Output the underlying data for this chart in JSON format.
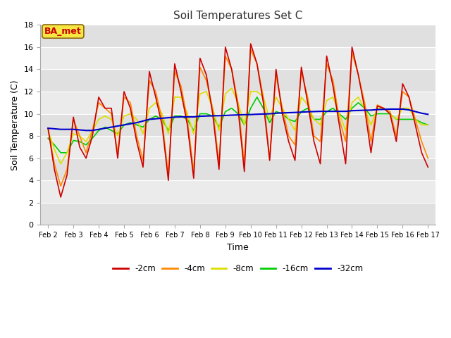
{
  "title": "Soil Temperatures Set C",
  "xlabel": "Time",
  "ylabel": "Soil Temperature (C)",
  "ylim": [
    0,
    18
  ],
  "yticks": [
    0,
    2,
    4,
    6,
    8,
    10,
    12,
    14,
    16,
    18
  ],
  "xtick_labels": [
    "Feb 2",
    "Feb 3",
    "Feb 4",
    "Feb 5",
    "Feb 6",
    "Feb 7",
    "Feb 8",
    "Feb 9",
    "Feb 10",
    "Feb 11",
    "Feb 12",
    "Feb 13",
    "Feb 14",
    "Feb 15",
    "Feb 16",
    "Feb 17"
  ],
  "annotation": "BA_met",
  "bg_color": "#ffffff",
  "plot_bg": "#e8e8e8",
  "band_colors": [
    "#e0e0e0",
    "#ebebeb"
  ],
  "series": {
    "neg2cm": {
      "color": "#cc0000",
      "label": "-2cm",
      "linewidth": 1.2
    },
    "neg4cm": {
      "color": "#ff8800",
      "label": "-4cm",
      "linewidth": 1.2
    },
    "neg8cm": {
      "color": "#dddd00",
      "label": "-8cm",
      "linewidth": 1.2
    },
    "neg16cm": {
      "color": "#00cc00",
      "label": "-16cm",
      "linewidth": 1.2
    },
    "neg32cm": {
      "color": "#0000cc",
      "label": "-32cm",
      "linewidth": 1.5
    }
  },
  "t": [
    0.0,
    0.25,
    0.5,
    0.75,
    1.0,
    1.25,
    1.5,
    1.75,
    2.0,
    2.25,
    2.5,
    2.75,
    3.0,
    3.25,
    3.5,
    3.75,
    4.0,
    4.25,
    4.5,
    4.75,
    5.0,
    5.25,
    5.5,
    5.75,
    6.0,
    6.25,
    6.5,
    6.75,
    7.0,
    7.25,
    7.5,
    7.75,
    8.0,
    8.25,
    8.5,
    8.75,
    9.0,
    9.25,
    9.5,
    9.75,
    10.0,
    10.25,
    10.5,
    10.75,
    11.0,
    11.25,
    11.5,
    11.75,
    12.0,
    12.25,
    12.5,
    12.75,
    13.0,
    13.25,
    13.5,
    13.75,
    14.0,
    14.25,
    14.5,
    14.75,
    15.0
  ],
  "neg2cm_data": [
    8.7,
    5.0,
    2.5,
    4.5,
    9.7,
    7.0,
    6.0,
    8.0,
    11.5,
    10.5,
    10.5,
    6.0,
    12.0,
    10.5,
    7.5,
    5.2,
    13.8,
    11.5,
    9.0,
    4.0,
    14.5,
    12.0,
    9.0,
    4.2,
    15.0,
    13.5,
    10.0,
    5.0,
    16.0,
    14.0,
    10.5,
    4.8,
    16.3,
    14.5,
    11.0,
    5.8,
    14.0,
    10.0,
    7.5,
    5.8,
    14.2,
    11.0,
    7.5,
    5.5,
    15.2,
    12.5,
    9.0,
    5.5,
    16.0,
    13.5,
    10.5,
    6.5,
    10.7,
    10.5,
    10.0,
    7.5,
    12.7,
    11.5,
    9.0,
    6.5,
    5.2
  ],
  "neg4cm_data": [
    8.7,
    5.5,
    3.5,
    5.0,
    9.5,
    8.0,
    6.5,
    8.5,
    11.0,
    10.5,
    10.0,
    6.5,
    11.5,
    11.0,
    8.0,
    5.8,
    13.0,
    12.0,
    9.5,
    4.5,
    13.8,
    12.5,
    9.5,
    4.8,
    14.2,
    13.0,
    10.5,
    5.5,
    15.2,
    14.0,
    11.0,
    5.5,
    15.8,
    14.5,
    11.5,
    6.0,
    13.5,
    10.5,
    8.0,
    7.2,
    13.8,
    11.5,
    8.0,
    7.5,
    14.5,
    13.0,
    9.5,
    7.5,
    15.5,
    13.5,
    11.0,
    7.5,
    10.8,
    10.5,
    10.2,
    8.0,
    12.0,
    11.5,
    9.5,
    7.5,
    6.0
  ],
  "neg8cm_data": [
    8.5,
    6.8,
    5.5,
    6.5,
    8.2,
    8.0,
    7.5,
    8.5,
    9.5,
    9.8,
    9.5,
    8.0,
    9.8,
    10.0,
    9.5,
    8.2,
    10.5,
    11.0,
    10.0,
    8.2,
    11.5,
    11.5,
    10.0,
    8.2,
    11.8,
    12.0,
    10.5,
    8.5,
    11.8,
    12.3,
    11.0,
    9.0,
    12.0,
    12.0,
    11.5,
    9.5,
    11.5,
    10.5,
    9.5,
    8.5,
    11.5,
    10.8,
    9.5,
    9.0,
    11.2,
    11.5,
    10.0,
    8.5,
    11.0,
    11.5,
    10.5,
    9.0,
    10.5,
    10.5,
    10.0,
    9.5,
    10.5,
    10.5,
    9.5,
    9.0,
    9.0
  ],
  "neg16cm_data": [
    7.8,
    7.2,
    6.5,
    6.5,
    7.6,
    7.5,
    7.2,
    7.8,
    8.5,
    8.8,
    8.5,
    8.2,
    9.0,
    9.2,
    9.0,
    8.8,
    9.5,
    9.8,
    9.5,
    8.5,
    9.8,
    9.8,
    9.5,
    8.5,
    10.0,
    10.0,
    9.8,
    8.8,
    10.2,
    10.5,
    10.0,
    9.0,
    10.5,
    11.5,
    10.5,
    9.2,
    10.2,
    10.0,
    9.5,
    9.3,
    10.2,
    10.5,
    9.5,
    9.5,
    10.2,
    10.5,
    10.0,
    9.5,
    10.5,
    11.0,
    10.5,
    9.8,
    10.0,
    10.0,
    10.0,
    9.5,
    9.5,
    9.5,
    9.5,
    9.2,
    9.0
  ],
  "neg32cm_data": [
    8.7,
    8.65,
    8.6,
    8.6,
    8.6,
    8.55,
    8.5,
    8.5,
    8.6,
    8.7,
    8.8,
    8.9,
    9.0,
    9.1,
    9.2,
    9.35,
    9.5,
    9.55,
    9.6,
    9.65,
    9.7,
    9.72,
    9.72,
    9.72,
    9.78,
    9.8,
    9.82,
    9.83,
    9.85,
    9.88,
    9.9,
    9.92,
    9.93,
    9.96,
    9.98,
    10.0,
    10.05,
    10.08,
    10.1,
    10.12,
    10.15,
    10.18,
    10.2,
    10.22,
    10.22,
    10.22,
    10.22,
    10.22,
    10.28,
    10.3,
    10.32,
    10.33,
    10.38,
    10.4,
    10.42,
    10.42,
    10.42,
    10.35,
    10.2,
    10.05,
    9.95
  ]
}
